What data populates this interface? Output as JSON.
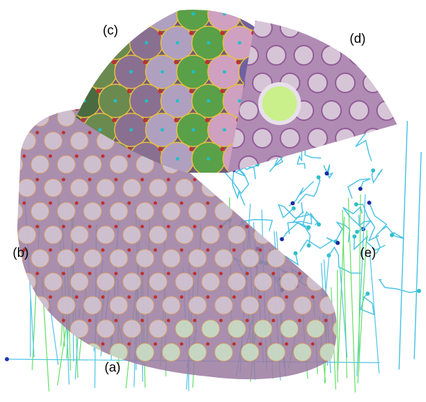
{
  "labels": [
    "(a)",
    "(b)",
    "(c)",
    "(d)",
    "(e)"
  ]
}
